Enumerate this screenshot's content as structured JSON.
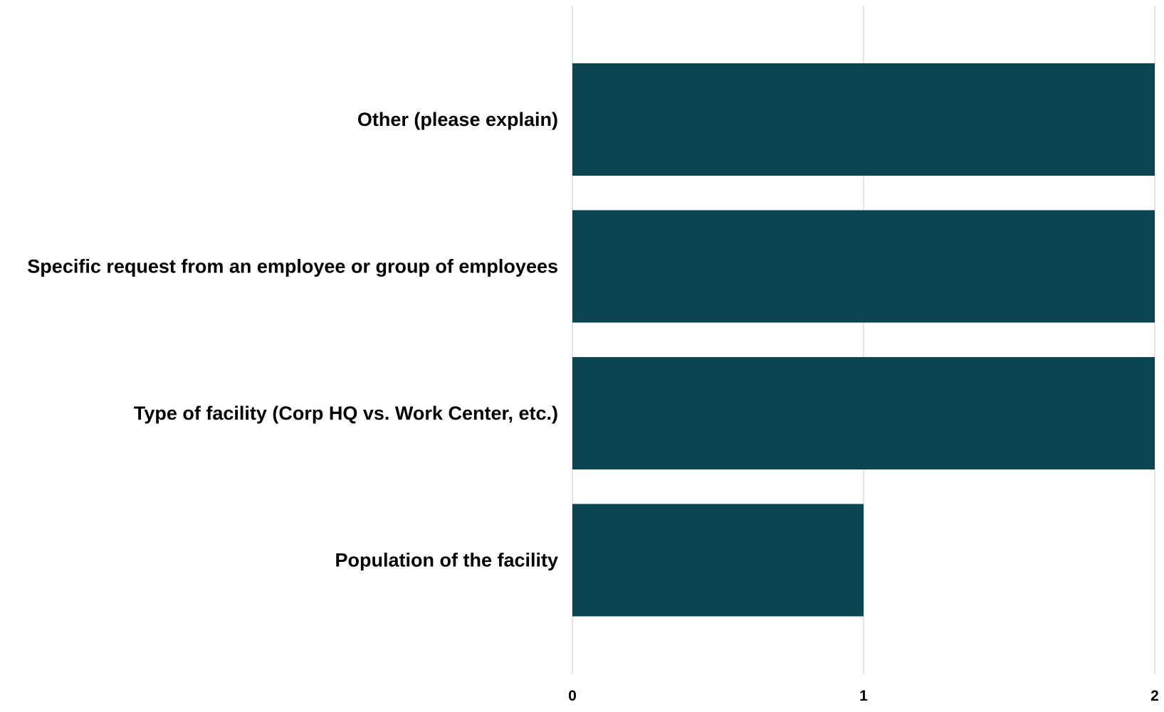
{
  "chart_data": {
    "type": "bar",
    "orientation": "horizontal",
    "categories": [
      "Other (please explain)",
      "Specific request from an employee or group of employees",
      "Type of facility (Corp HQ vs. Work Center, etc.)",
      "Population of the facility"
    ],
    "values": [
      2,
      2,
      2,
      1
    ],
    "xlim": [
      0,
      2
    ],
    "x_ticks": [
      "0",
      "1",
      "2"
    ],
    "grid": true,
    "bar_color": "#0b4551",
    "title": "",
    "xlabel": "",
    "ylabel": ""
  }
}
